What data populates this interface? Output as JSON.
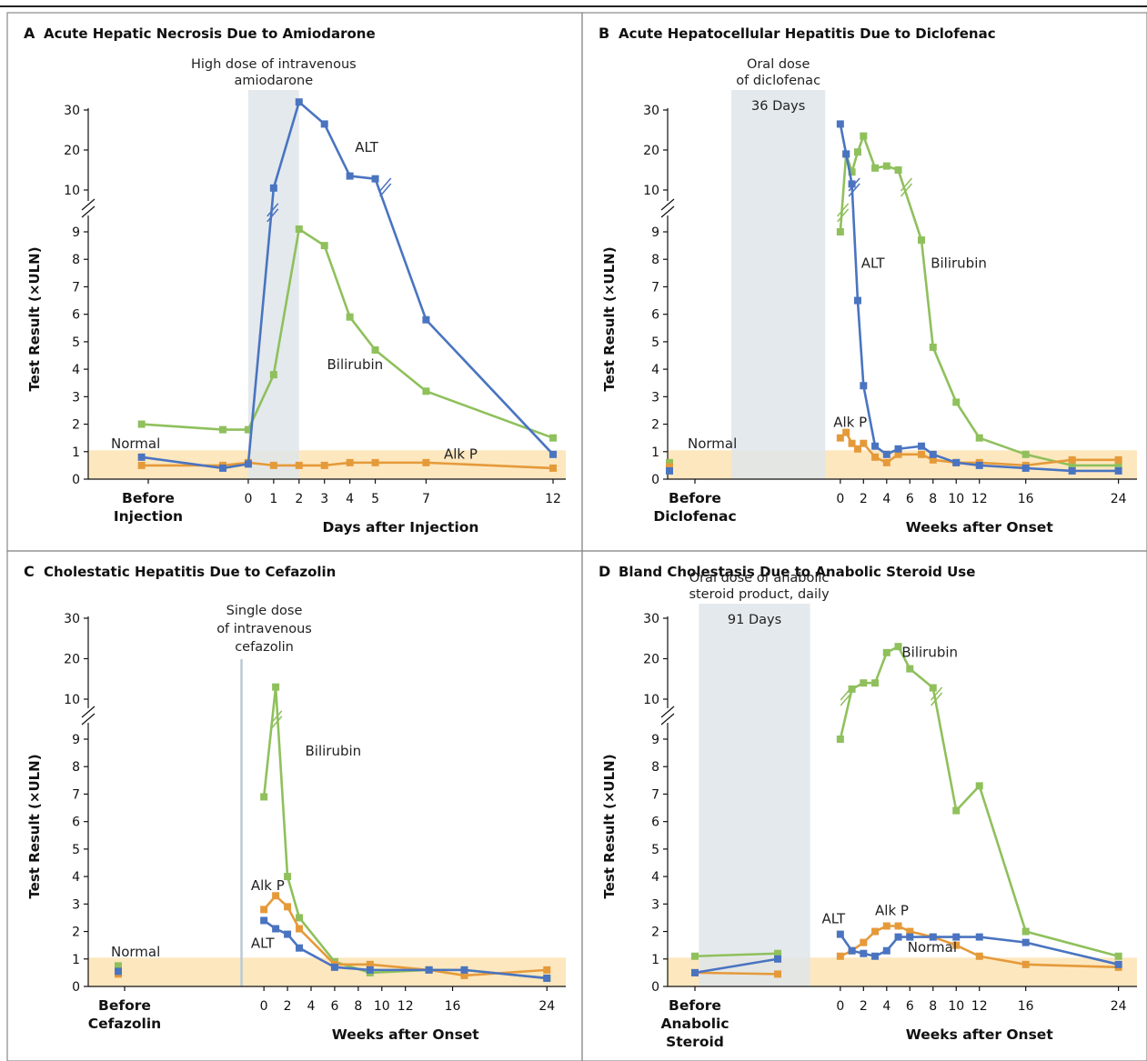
{
  "colors": {
    "alt": "#4a74c0",
    "bilirubin": "#8fc05c",
    "alkp": "#e59a3a",
    "normal_band": "#fde7bf",
    "exposure": "#dfe5ea",
    "panel_border": "#888888"
  },
  "chart_data": [
    {
      "type": "line",
      "panel": "A",
      "title": "Acute Hepatic Necrosis Due to Amiodarone",
      "ylabel": "Test Result (×ULN)",
      "xlabel": "Days after Injection",
      "before_label": [
        "Before",
        "Injection"
      ],
      "y_lower_ticks": [
        0,
        1,
        2,
        3,
        4,
        5,
        6,
        7,
        8,
        9
      ],
      "y_upper_ticks": [
        10,
        20,
        30
      ],
      "x_ticks": [
        0,
        1,
        2,
        3,
        4,
        5,
        7,
        12
      ],
      "x_domain": [
        -6.3,
        12.5
      ],
      "normal_label": "Normal",
      "exposure": {
        "type": "band",
        "start": 0,
        "end": 2,
        "label": [
          "High dose of intravenous",
          "amiodarone"
        ]
      },
      "series": [
        {
          "name": "ALT",
          "color_key": "alt",
          "points": [
            [
              -4.2,
              0.8
            ],
            [
              -1,
              0.4
            ],
            [
              0,
              0.55
            ],
            [
              1,
              10.5
            ],
            [
              2,
              32
            ],
            [
              3,
              26.5
            ],
            [
              4,
              13.5
            ],
            [
              5,
              12.8
            ],
            [
              7,
              5.8
            ],
            [
              12,
              0.9
            ]
          ],
          "breaks": [
            [
              0.96,
              9.6
            ],
            [
              5.4,
              10.0
            ]
          ]
        },
        {
          "name": "Bilirubin",
          "color_key": "bilirubin",
          "points": [
            [
              -4.2,
              2.0
            ],
            [
              -1,
              1.8
            ],
            [
              0,
              1.8
            ],
            [
              1,
              3.8
            ],
            [
              2,
              9.1
            ],
            [
              3,
              8.5
            ],
            [
              4,
              5.9
            ],
            [
              5,
              4.7
            ],
            [
              7,
              3.2
            ],
            [
              12,
              1.5
            ]
          ],
          "breaks": []
        },
        {
          "name": "Alk P",
          "color_key": "alkp",
          "points": [
            [
              -4.2,
              0.5
            ],
            [
              -1,
              0.5
            ],
            [
              0,
              0.6
            ],
            [
              1,
              0.5
            ],
            [
              2,
              0.5
            ],
            [
              3,
              0.5
            ],
            [
              4,
              0.6
            ],
            [
              5,
              0.6
            ],
            [
              7,
              0.6
            ],
            [
              12,
              0.4
            ]
          ],
          "breaks": []
        }
      ],
      "series_labels": [
        {
          "text": "ALT",
          "x": 4.2,
          "y": 19.5
        },
        {
          "text": "Bilirubin",
          "x": 3.1,
          "y": 4.0
        },
        {
          "text": "Alk P",
          "x": 7.7,
          "y": 0.75
        }
      ]
    },
    {
      "type": "line",
      "panel": "B",
      "title": "Acute Hepatocellular Hepatitis Due to Diclofenac",
      "ylabel": "Test Result (×ULN)",
      "xlabel": "Weeks after Onset",
      "before_label": [
        "Before",
        "Diclofenac"
      ],
      "y_lower_ticks": [
        0,
        1,
        2,
        3,
        4,
        5,
        6,
        7,
        8,
        9
      ],
      "y_upper_ticks": [
        10,
        20,
        30
      ],
      "x_ticks": [
        0,
        2,
        4,
        6,
        8,
        10,
        12,
        16,
        24
      ],
      "x_domain": [
        -14.9,
        25.6
      ],
      "normal_label": "Normal",
      "exposure": {
        "type": "band",
        "start": -9.4,
        "end": -1.3,
        "label": [
          "Oral dose",
          "of diclofenac"
        ],
        "inner_label": "36 Days"
      },
      "series": [
        {
          "name": "ALT",
          "color_key": "alt",
          "points": [
            [
              0,
              26.5
            ],
            [
              0.5,
              19
            ],
            [
              1,
              11.5
            ],
            [
              1.5,
              6.5
            ],
            [
              2,
              3.4
            ],
            [
              3,
              1.2
            ],
            [
              4,
              0.9
            ],
            [
              5,
              1.1
            ],
            [
              7,
              1.2
            ],
            [
              8,
              0.9
            ],
            [
              10,
              0.6
            ],
            [
              12,
              0.5
            ],
            [
              16,
              0.4
            ],
            [
              20,
              0.3
            ],
            [
              24,
              0.3
            ]
          ],
          "breaks": [
            [
              1.2,
              10.0
            ]
          ]
        },
        {
          "name": "Bilirubin",
          "color_key": "bilirubin",
          "points": [
            [
              0,
              9.0
            ],
            [
              0.5,
              19
            ],
            [
              1,
              14.5
            ],
            [
              1.5,
              19.5
            ],
            [
              2,
              23.5
            ],
            [
              3,
              15.5
            ],
            [
              4,
              16
            ],
            [
              5,
              15
            ],
            [
              7,
              8.7
            ],
            [
              8,
              4.8
            ],
            [
              10,
              2.8
            ],
            [
              12,
              1.5
            ],
            [
              16,
              0.9
            ],
            [
              20,
              0.5
            ],
            [
              24,
              0.5
            ]
          ],
          "breaks": [
            [
              0.22,
              9.6
            ],
            [
              5.7,
              10.0
            ]
          ]
        },
        {
          "name": "Alk P",
          "color_key": "alkp",
          "points": [
            [
              0,
              1.5
            ],
            [
              0.5,
              1.7
            ],
            [
              1,
              1.3
            ],
            [
              1.5,
              1.1
            ],
            [
              2,
              1.3
            ],
            [
              3,
              0.8
            ],
            [
              4,
              0.6
            ],
            [
              5,
              0.9
            ],
            [
              7,
              0.9
            ],
            [
              8,
              0.7
            ],
            [
              10,
              0.6
            ],
            [
              12,
              0.6
            ],
            [
              16,
              0.5
            ],
            [
              20,
              0.7
            ],
            [
              24,
              0.7
            ]
          ],
          "breaks": []
        }
      ],
      "before_markers": [
        {
          "color_key": "bilirubin",
          "x": -12.8,
          "y": 0.6
        },
        {
          "color_key": "alkp",
          "x": -12.8,
          "y": 0.45
        },
        {
          "color_key": "alt",
          "x": -12.8,
          "y": 0.3
        }
      ],
      "series_labels": [
        {
          "text": "ALT",
          "x": 1.8,
          "y": 7.7
        },
        {
          "text": "Bilirubin",
          "x": 7.8,
          "y": 7.7
        },
        {
          "text": "Alk P",
          "x": -0.6,
          "y": 1.9
        }
      ]
    },
    {
      "type": "line",
      "panel": "C",
      "title": "Cholestatic Hepatitis Due to Cefazolin",
      "ylabel": "Test Result (×ULN)",
      "xlabel": "Weeks after Onset",
      "before_label": [
        "Before",
        "Cefazolin"
      ],
      "y_lower_ticks": [
        0,
        1,
        2,
        3,
        4,
        5,
        6,
        7,
        8,
        9
      ],
      "y_upper_ticks": [
        10,
        20,
        30
      ],
      "x_ticks": [
        0,
        2,
        4,
        6,
        8,
        10,
        12,
        16,
        24
      ],
      "x_domain": [
        -14.9,
        25.6
      ],
      "normal_label": "Normal",
      "exposure": {
        "type": "line",
        "at": -1.9,
        "label": [
          "Single dose",
          "of intravenous",
          "cefazolin"
        ]
      },
      "series": [
        {
          "name": "ALT",
          "color_key": "alt",
          "points": [
            [
              0,
              2.4
            ],
            [
              1,
              2.1
            ],
            [
              2,
              1.9
            ],
            [
              3,
              1.4
            ],
            [
              6,
              0.7
            ],
            [
              9,
              0.6
            ],
            [
              14,
              0.6
            ],
            [
              17,
              0.6
            ],
            [
              24,
              0.3
            ]
          ],
          "breaks": []
        },
        {
          "name": "Bilirubin",
          "color_key": "bilirubin",
          "points": [
            [
              0,
              6.9
            ],
            [
              1,
              13
            ],
            [
              2,
              4.0
            ],
            [
              3,
              2.5
            ],
            [
              6,
              0.9
            ],
            [
              9,
              0.5
            ],
            [
              14,
              0.6
            ],
            [
              17,
              0.6
            ],
            [
              24,
              0.3
            ]
          ],
          "breaks": [
            [
              1.05,
              9.6
            ]
          ]
        },
        {
          "name": "Alk P",
          "color_key": "alkp",
          "points": [
            [
              0,
              2.8
            ],
            [
              1,
              3.3
            ],
            [
              2,
              2.9
            ],
            [
              3,
              2.1
            ],
            [
              6,
              0.8
            ],
            [
              9,
              0.8
            ],
            [
              14,
              0.6
            ],
            [
              17,
              0.4
            ],
            [
              24,
              0.6
            ]
          ],
          "breaks": []
        }
      ],
      "before_markers": [
        {
          "color_key": "bilirubin",
          "x": -12.8,
          "y": 0.75
        },
        {
          "color_key": "alkp",
          "x": -12.8,
          "y": 0.45
        },
        {
          "color_key": "alt",
          "x": -12.8,
          "y": 0.55
        }
      ],
      "series_labels": [
        {
          "text": "Bilirubin",
          "x": 3.5,
          "y": 8.4
        },
        {
          "text": "Alk P",
          "x": -1.1,
          "y": 3.5
        },
        {
          "text": "ALT",
          "x": -1.1,
          "y": 1.4
        }
      ]
    },
    {
      "type": "line",
      "panel": "D",
      "title": "Bland Cholestasis Due to Anabolic Steroid Use",
      "ylabel": "Test Result (×ULN)",
      "xlabel": "Weeks after Onset",
      "before_label": [
        "Before",
        "Anabolic",
        "Steroid"
      ],
      "y_lower_ticks": [
        0,
        1,
        2,
        3,
        4,
        5,
        6,
        7,
        8,
        9
      ],
      "y_upper_ticks": [
        10,
        20,
        30
      ],
      "x_ticks": [
        0,
        2,
        4,
        6,
        8,
        10,
        12,
        16,
        24
      ],
      "x_domain": [
        -14.9,
        25.6
      ],
      "normal_label": "Normal",
      "exposure": {
        "type": "band",
        "start": -12.2,
        "end": -2.6,
        "label": [
          "Oral dose of anabolic",
          "steroid product, daily"
        ],
        "inner_label": "91 Days"
      },
      "series": [
        {
          "name": "ALT",
          "color_key": "alt",
          "points": [
            [
              0,
              1.9
            ],
            [
              1,
              1.3
            ],
            [
              2,
              1.2
            ],
            [
              3,
              1.1
            ],
            [
              4,
              1.3
            ],
            [
              5,
              1.8
            ],
            [
              6,
              1.8
            ],
            [
              8,
              1.8
            ],
            [
              10,
              1.8
            ],
            [
              12,
              1.8
            ],
            [
              16,
              1.6
            ],
            [
              24,
              0.8
            ]
          ],
          "breaks": []
        },
        {
          "name": "Bilirubin",
          "color_key": "bilirubin",
          "points": [
            [
              0,
              9.0
            ],
            [
              1,
              12.5
            ],
            [
              2,
              14
            ],
            [
              3,
              14
            ],
            [
              4,
              21.5
            ],
            [
              5,
              23
            ],
            [
              6,
              17.5
            ],
            [
              8,
              12.8
            ],
            [
              10,
              6.4
            ],
            [
              12,
              7.3
            ],
            [
              16,
              2.0
            ],
            [
              24,
              1.1
            ]
          ],
          "breaks": [
            [
              0.5,
              10.0
            ],
            [
              8.3,
              10.0
            ]
          ]
        },
        {
          "name": "Alk P",
          "color_key": "alkp",
          "points": [
            [
              0,
              1.1
            ],
            [
              1,
              1.3
            ],
            [
              2,
              1.6
            ],
            [
              3,
              2.0
            ],
            [
              4,
              2.2
            ],
            [
              5,
              2.2
            ],
            [
              6,
              2.0
            ],
            [
              8,
              1.8
            ],
            [
              10,
              1.5
            ],
            [
              12,
              1.1
            ],
            [
              16,
              0.8
            ],
            [
              24,
              0.7
            ]
          ],
          "breaks": []
        }
      ],
      "before_series": [
        {
          "color_key": "bilirubin",
          "points": [
            [
              -12.8,
              1.1
            ],
            [
              -5.4,
              1.2
            ]
          ]
        },
        {
          "color_key": "alkp",
          "points": [
            [
              -12.8,
              0.5
            ],
            [
              -5.4,
              0.45
            ]
          ]
        },
        {
          "color_key": "alt",
          "points": [
            [
              -12.8,
              0.5
            ],
            [
              -5.4,
              1.0
            ]
          ]
        }
      ],
      "series_labels": [
        {
          "text": "Bilirubin",
          "x": 5.3,
          "y": 20.5
        },
        {
          "text": "ALT",
          "x": -1.6,
          "y": 2.3
        },
        {
          "text": "Alk P",
          "x": 3.0,
          "y": 2.6
        },
        {
          "text": "Normal",
          "x": 5.8,
          "y": 1.25
        }
      ]
    }
  ]
}
